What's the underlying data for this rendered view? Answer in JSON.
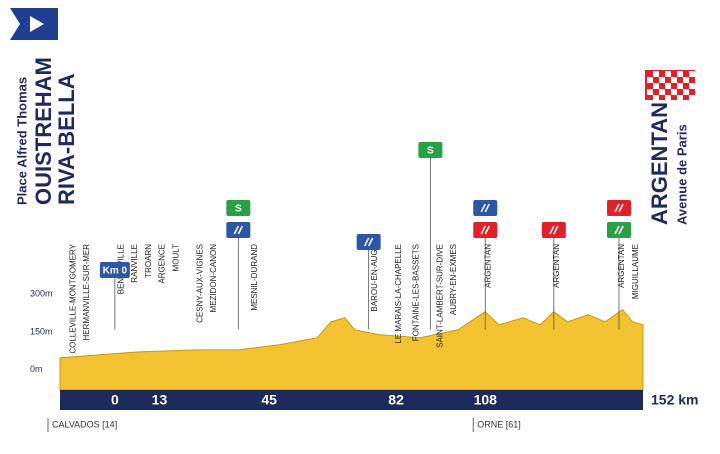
{
  "chart_data": {
    "type": "area",
    "start": {
      "place": "Place Alfred Thomas",
      "town": [
        "OUISTREHAM",
        "RIVA-BELLA"
      ]
    },
    "finish": {
      "town": "ARGENTAN",
      "place": "Avenue de Paris"
    },
    "x": [
      -16,
      -5,
      7,
      24,
      36,
      48,
      59,
      63,
      67,
      70,
      77,
      89,
      100,
      108,
      112,
      119,
      124,
      128,
      132,
      138,
      143,
      148,
      151,
      154
    ],
    "values": [
      47,
      59,
      71,
      79,
      79,
      99,
      127,
      190,
      206,
      158,
      139,
      127,
      158,
      230,
      178,
      206,
      178,
      230,
      190,
      218,
      190,
      238,
      190,
      178
    ],
    "color": "#f2c230",
    "xlim": [
      -16,
      154
    ],
    "xticks": [
      0,
      13,
      45,
      82,
      108,
      {
        "value": 152,
        "label": "152 km"
      }
    ],
    "ylim": [
      -80,
      300
    ],
    "yticks": [
      {
        "value": 0,
        "label": "0m"
      },
      {
        "value": 150,
        "label": "150m"
      },
      {
        "value": 300,
        "label": "300m"
      }
    ],
    "places": [
      {
        "name": "COLLEVILLE-MONTGOMERY",
        "km": -13
      },
      {
        "name": "HERMANVILLE-SUR-MER",
        "km": -9
      },
      {
        "name": "BENOUVILLE",
        "km": 1
      },
      {
        "name": "RANVILLE",
        "km": 5
      },
      {
        "name": "TROARN",
        "km": 9
      },
      {
        "name": "ARGENCE",
        "km": 13
      },
      {
        "name": "MOULT",
        "km": 17
      },
      {
        "name": "CESNY-AUX-VIGNES",
        "km": 24
      },
      {
        "name": "MEZIDON-CANON",
        "km": 28
      },
      {
        "name": "MESNIL-DURAND",
        "km": 40
      },
      {
        "name": "BAROU-EN-AUGE",
        "km": 75
      },
      {
        "name": "LE MARAIS-LA-CHAPELLE",
        "km": 82
      },
      {
        "name": "FONTAINE-LES-BASSETS",
        "km": 87
      },
      {
        "name": "SAINT-LAMBERT-SUR-DIVE",
        "km": 94
      },
      {
        "name": "AUBRY-EN-EXMES",
        "km": 98
      },
      {
        "name": "ARGENTAN",
        "km": 108
      },
      {
        "name": "ARGENTAN",
        "km": 128
      },
      {
        "name": "ARGENTAN",
        "km": 147
      },
      {
        "name": "MIGUILLAUME",
        "km": 151
      }
    ],
    "markers": [
      {
        "km": 0,
        "color": "#2e55a6",
        "label": "Km 0"
      },
      {
        "km": 36,
        "color": "#2e55a6"
      },
      {
        "km": 36,
        "color": "#2aa046",
        "label": "S"
      },
      {
        "km": 74,
        "color": "#2e55a6"
      },
      {
        "km": 92,
        "color": "#2aa046",
        "label": "S"
      },
      {
        "km": 108,
        "color": "#e2202a"
      },
      {
        "km": 108,
        "color": "#2e55a6"
      },
      {
        "km": 128,
        "color": "#e2202a"
      },
      {
        "km": 147,
        "color": "#2aa046"
      },
      {
        "km": 147,
        "color": "#e2202a"
      }
    ],
    "regions": [
      {
        "name": "CALVADOS [14]",
        "km": -16
      },
      {
        "name": "ORNE [61]",
        "km": 108
      }
    ]
  }
}
